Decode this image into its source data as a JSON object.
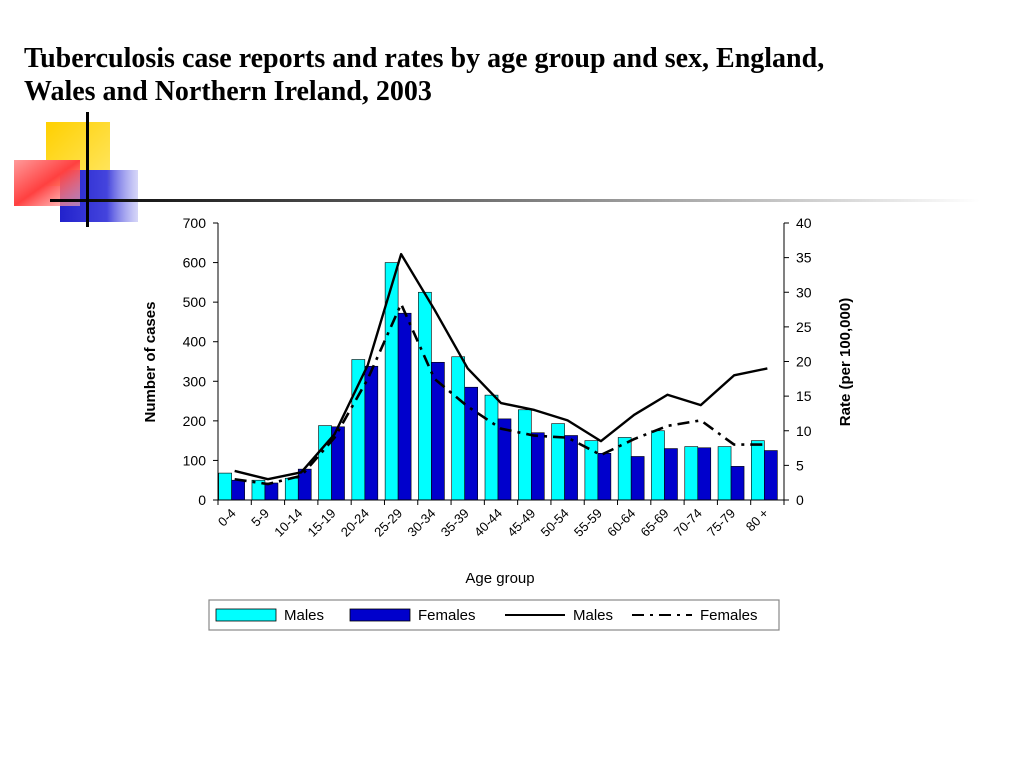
{
  "slide": {
    "title_line1": "Tuberculosis case reports and rates by age group and sex, England,",
    "title_line2": "Wales and Northern Ireland, 2003"
  },
  "colors": {
    "males_bar": "#00FFFF",
    "females_bar": "#0000CC",
    "line": "#000000",
    "decor_yellow": "#FFD700",
    "decor_red": "#FF4A4A",
    "decor_blue": "#3333CC"
  },
  "chart_data": {
    "type": "bar",
    "title": "",
    "xlabel": "Age group",
    "ylabel": "Number of cases",
    "y2label": "Rate (per 100,000)",
    "ylim": [
      0,
      700
    ],
    "y2lim": [
      0,
      40
    ],
    "yticks": [
      "0",
      "100",
      "200",
      "300",
      "400",
      "500",
      "600",
      "700"
    ],
    "y2ticks": [
      "0",
      "5",
      "10",
      "15",
      "20",
      "25",
      "30",
      "35",
      "40"
    ],
    "categories": [
      "0-4",
      "5-9",
      "10-14",
      "15-19",
      "20-24",
      "25-29",
      "30-34",
      "35-39",
      "40-44",
      "45-49",
      "50-54",
      "55-59",
      "60-64",
      "65-69",
      "70-74",
      "75-79",
      "80 +"
    ],
    "series": [
      {
        "name": "Males",
        "kind": "bar",
        "axis": "left",
        "values": [
          68,
          50,
          55,
          188,
          355,
          600,
          525,
          362,
          265,
          228,
          193,
          150,
          158,
          175,
          135,
          135,
          150
        ]
      },
      {
        "name": "Females",
        "kind": "bar",
        "axis": "left",
        "values": [
          50,
          43,
          78,
          185,
          338,
          472,
          348,
          285,
          205,
          170,
          163,
          118,
          110,
          130,
          132,
          85,
          125
        ]
      },
      {
        "name": "Males",
        "kind": "line",
        "style": "solid",
        "axis": "right",
        "values": [
          4.2,
          3,
          4,
          9.5,
          19.5,
          35.5,
          27.5,
          19,
          14,
          13,
          11.5,
          8.5,
          12.3,
          15.2,
          13.7,
          18,
          19
        ]
      },
      {
        "name": "Females",
        "kind": "line",
        "style": "dashed",
        "axis": "right",
        "values": [
          3,
          2.3,
          3.5,
          9,
          17.5,
          28.3,
          17.5,
          13.5,
          10.3,
          9.3,
          9,
          6.5,
          8.8,
          10.7,
          11.5,
          8,
          8
        ]
      }
    ],
    "legend": {
      "position": "bottom",
      "items": [
        {
          "label": "Males",
          "symbol": "bar",
          "color": "#00FFFF"
        },
        {
          "label": "Females",
          "symbol": "bar",
          "color": "#0000CC"
        },
        {
          "label": "Males",
          "symbol": "solid-line",
          "color": "#000000"
        },
        {
          "label": "Females",
          "symbol": "dashed-line",
          "color": "#000000"
        }
      ]
    },
    "grid": false
  }
}
